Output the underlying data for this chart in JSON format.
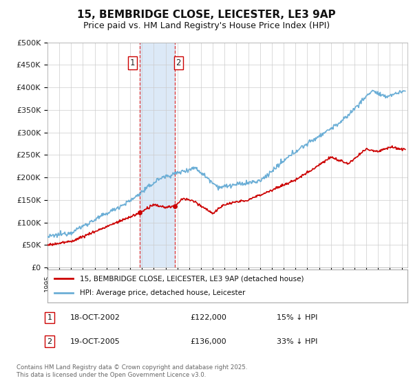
{
  "title": "15, BEMBRIDGE CLOSE, LEICESTER, LE3 9AP",
  "subtitle": "Price paid vs. HM Land Registry's House Price Index (HPI)",
  "ylabel_ticks": [
    "£0",
    "£50K",
    "£100K",
    "£150K",
    "£200K",
    "£250K",
    "£300K",
    "£350K",
    "£400K",
    "£450K",
    "£500K"
  ],
  "ytick_values": [
    0,
    50000,
    100000,
    150000,
    200000,
    250000,
    300000,
    350000,
    400000,
    450000,
    500000
  ],
  "x_start_year": 1995,
  "x_end_year": 2025,
  "hpi_color": "#6baed6",
  "price_color": "#cc0000",
  "transaction1_x": 2002.79,
  "transaction1_price": 122000,
  "transaction1_date": "18-OCT-2002",
  "transaction1_label": "15% ↓ HPI",
  "transaction2_x": 2005.79,
  "transaction2_price": 136000,
  "transaction2_date": "19-OCT-2005",
  "transaction2_label": "33% ↓ HPI",
  "legend_label1": "15, BEMBRIDGE CLOSE, LEICESTER, LE3 9AP (detached house)",
  "legend_label2": "HPI: Average price, detached house, Leicester",
  "footnote1": "Contains HM Land Registry data © Crown copyright and database right 2025.",
  "footnote2": "This data is licensed under the Open Government Licence v3.0.",
  "background_color": "#ffffff",
  "grid_color": "#cccccc",
  "shaded_region_color": "#dce9f7",
  "title_fontsize": 11,
  "subtitle_fontsize": 9,
  "tick_label_color": "#222222"
}
